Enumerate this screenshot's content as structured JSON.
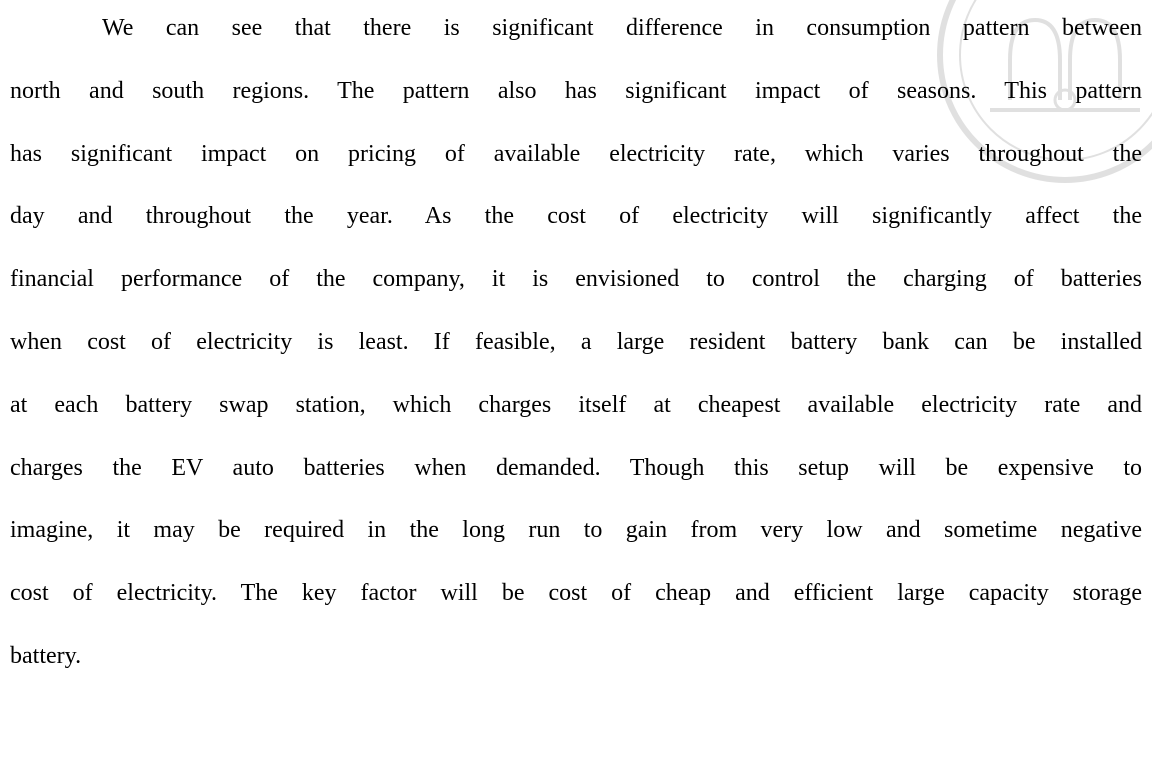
{
  "paragraph": {
    "lines": [
      "We can see that there is significant difference in consumption pattern between",
      "north and south regions. The pattern also has significant impact of seasons. This pattern",
      "has significant impact on pricing of available electricity rate, which varies throughout the",
      "day and throughout the year. As the cost of electricity will significantly affect the",
      "financial performance of the company, it is envisioned to control the charging of batteries",
      "when cost of electricity is least. If feasible, a large resident battery bank can be installed",
      "at each battery swap station, which charges itself at cheapest available electricity rate and",
      "charges the EV auto batteries when demanded. Though this setup will be expensive to",
      "imagine, it may be required in the long run to gain from very low and sometime negative",
      "cost of electricity. The key factor will be cost of cheap and efficient large capacity storage",
      "battery."
    ]
  }
}
